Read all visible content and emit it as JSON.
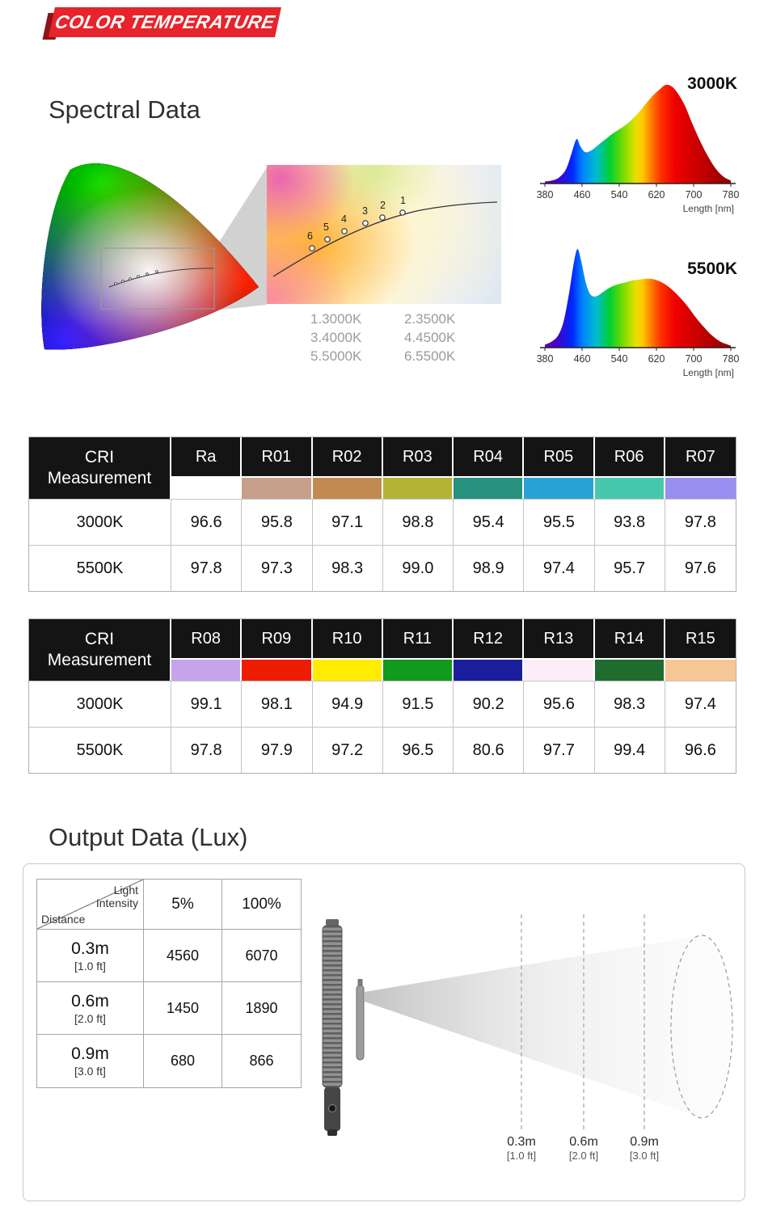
{
  "banner": {
    "label": "COLOR TEMPERATURE"
  },
  "headings": {
    "spectral": "Spectral Data",
    "output": "Output Data (Lux)"
  },
  "cie": {
    "point_labels": [
      "1",
      "2",
      "3",
      "4",
      "5",
      "6"
    ],
    "legend": [
      "1.3000K",
      "2.3500K",
      "3.4000K",
      "4.4500K",
      "5.5000K",
      "6.5500K"
    ]
  },
  "chart_data": [
    {
      "type": "area",
      "title": "3000K",
      "xlabel": "Length [nm]",
      "ylabel": "",
      "xlim": [
        380,
        780
      ],
      "ylim": [
        0,
        1
      ],
      "x_ticks": [
        "380",
        "460",
        "540",
        "620",
        "700",
        "780"
      ],
      "x": [
        380,
        395,
        410,
        425,
        437,
        448,
        456,
        466,
        478,
        492,
        508,
        524,
        540,
        558,
        576,
        594,
        610,
        626,
        640,
        654,
        668,
        682,
        696,
        712,
        728,
        746,
        764,
        780
      ],
      "y": [
        0.02,
        0.03,
        0.06,
        0.14,
        0.3,
        0.45,
        0.38,
        0.32,
        0.33,
        0.38,
        0.44,
        0.5,
        0.55,
        0.61,
        0.69,
        0.79,
        0.88,
        0.95,
        1.0,
        0.98,
        0.9,
        0.78,
        0.62,
        0.45,
        0.3,
        0.16,
        0.07,
        0.03
      ]
    },
    {
      "type": "area",
      "title": "5500K",
      "xlabel": "Length [nm]",
      "ylabel": "",
      "xlim": [
        380,
        780
      ],
      "ylim": [
        0,
        1
      ],
      "x_ticks": [
        "380",
        "460",
        "540",
        "620",
        "700",
        "780"
      ],
      "x": [
        380,
        394,
        408,
        420,
        432,
        442,
        450,
        458,
        468,
        478,
        490,
        504,
        520,
        536,
        552,
        568,
        584,
        600,
        616,
        632,
        648,
        662,
        676,
        690,
        704,
        720,
        738,
        758,
        780
      ],
      "y": [
        0.03,
        0.06,
        0.12,
        0.26,
        0.55,
        0.85,
        1.0,
        0.88,
        0.66,
        0.54,
        0.52,
        0.56,
        0.61,
        0.64,
        0.66,
        0.68,
        0.69,
        0.7,
        0.69,
        0.66,
        0.61,
        0.55,
        0.48,
        0.4,
        0.31,
        0.22,
        0.13,
        0.06,
        0.02
      ]
    }
  ],
  "cri_tables": [
    {
      "header_line1": "CRI",
      "header_line2": "Measurement",
      "columns": [
        {
          "label": "Ra",
          "swatch": "#ffffff"
        },
        {
          "label": "R01",
          "swatch": "#c7a08a"
        },
        {
          "label": "R02",
          "swatch": "#c28a50"
        },
        {
          "label": "R03",
          "swatch": "#b5b336"
        },
        {
          "label": "R04",
          "swatch": "#27917e"
        },
        {
          "label": "R05",
          "swatch": "#2aa3d4"
        },
        {
          "label": "R06",
          "swatch": "#46c8ae"
        },
        {
          "label": "R07",
          "swatch": "#988ff2"
        }
      ],
      "rows": [
        {
          "label": "3000K",
          "values": [
            "96.6",
            "95.8",
            "97.1",
            "98.8",
            "95.4",
            "95.5",
            "93.8",
            "97.8"
          ]
        },
        {
          "label": "5500K",
          "values": [
            "97.8",
            "97.3",
            "98.3",
            "99.0",
            "98.9",
            "97.4",
            "95.7",
            "97.6"
          ]
        }
      ]
    },
    {
      "header_line1": "CRI",
      "header_line2": "Measurement",
      "columns": [
        {
          "label": "R08",
          "swatch": "#c6a4ec"
        },
        {
          "label": "R09",
          "swatch": "#ee1c00"
        },
        {
          "label": "R10",
          "swatch": "#ffec00"
        },
        {
          "label": "R11",
          "swatch": "#119a1e"
        },
        {
          "label": "R12",
          "swatch": "#1a1e9c"
        },
        {
          "label": "R13",
          "swatch": "#fceef8"
        },
        {
          "label": "R14",
          "swatch": "#206b2e"
        },
        {
          "label": "R15",
          "swatch": "#f6c794"
        }
      ],
      "rows": [
        {
          "label": "3000K",
          "values": [
            "99.1",
            "98.1",
            "94.9",
            "91.5",
            "90.2",
            "95.6",
            "98.3",
            "97.4"
          ]
        },
        {
          "label": "5500K",
          "values": [
            "97.8",
            "97.9",
            "97.2",
            "96.5",
            "80.6",
            "97.7",
            "99.4",
            "96.6"
          ]
        }
      ]
    }
  ],
  "output_table": {
    "corner_top": "Light Intensity",
    "corner_bottom": "Distance",
    "columns": [
      "5%",
      "100%"
    ],
    "rows": [
      {
        "distance": "0.3m",
        "feet": "[1.0 ft]",
        "values": [
          "4560",
          "6070"
        ]
      },
      {
        "distance": "0.6m",
        "feet": "[2.0 ft]",
        "values": [
          "1450",
          "1890"
        ]
      },
      {
        "distance": "0.9m",
        "feet": "[3.0 ft]",
        "values": [
          "680",
          "866"
        ]
      }
    ]
  },
  "beam_labels": [
    {
      "m": "0.3m",
      "ft": "[1.0 ft]"
    },
    {
      "m": "0.6m",
      "ft": "[2.0 ft]"
    },
    {
      "m": "0.9m",
      "ft": "[3.0 ft]"
    }
  ]
}
